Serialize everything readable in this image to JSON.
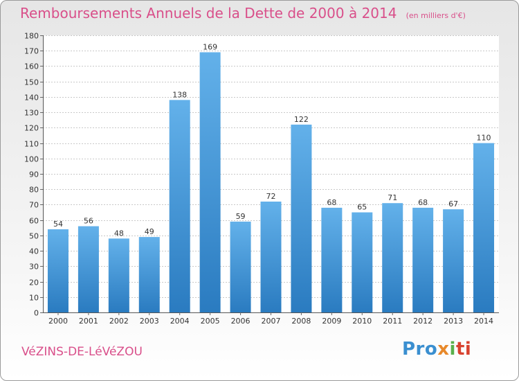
{
  "header": {
    "title": "Remboursements Annuels de la Dette de 2000 à 2014",
    "unit": "(en milliers d'€)"
  },
  "footer": {
    "city": "VéZINS-DE-LéVéZOU",
    "logo": "Proxiti"
  },
  "colors": {
    "title": "#d94f8a",
    "bar_light": "#63b1ea",
    "bar_dark": "#2a7bc0"
  },
  "chart_data": {
    "type": "bar",
    "title": "Remboursements Annuels de la Dette de 2000 à 2014",
    "categories": [
      "2000",
      "2001",
      "2002",
      "2003",
      "2004",
      "2005",
      "2006",
      "2007",
      "2008",
      "2009",
      "2010",
      "2011",
      "2012",
      "2013",
      "2014"
    ],
    "values": [
      54,
      56,
      48,
      49,
      138,
      169,
      59,
      72,
      122,
      68,
      65,
      71,
      68,
      67,
      110
    ],
    "ylim": [
      0,
      180
    ],
    "ytick_step": 10,
    "grid": true,
    "legend": "none"
  }
}
